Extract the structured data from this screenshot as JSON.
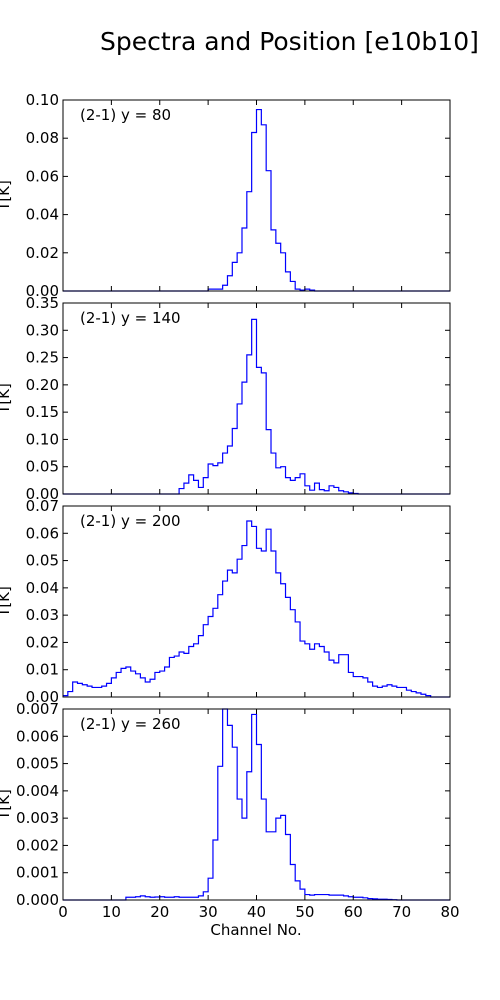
{
  "title": "Spectra and Position [e10b10]",
  "chart_data": {
    "type": "line",
    "title": "Spectra and Position [e10b10]",
    "xlabel": "Channel No.",
    "ylabel": "T[K]",
    "xlim": [
      0,
      80
    ],
    "xticks": [
      0,
      10,
      20,
      30,
      40,
      50,
      60,
      70,
      80
    ],
    "panels": [
      {
        "label": "(2-1) y = 80",
        "ylim": [
          0,
          0.1
        ],
        "yticks": [
          0.0,
          0.02,
          0.04,
          0.06,
          0.08,
          0.1
        ],
        "ytick_labels": [
          "0.00",
          "0.02",
          "0.04",
          "0.06",
          "0.08",
          "0.10"
        ],
        "x": [
          0,
          1,
          2,
          3,
          4,
          5,
          6,
          7,
          8,
          9,
          10,
          11,
          12,
          13,
          14,
          15,
          16,
          17,
          18,
          19,
          20,
          21,
          22,
          23,
          24,
          25,
          26,
          27,
          28,
          29,
          30,
          31,
          32,
          33,
          34,
          35,
          36,
          37,
          38,
          39,
          40,
          41,
          42,
          43,
          44,
          45,
          46,
          47,
          48,
          49,
          50,
          51,
          52,
          53,
          54,
          55,
          56,
          57,
          58,
          59,
          60,
          61,
          62,
          63,
          64,
          65,
          66,
          67,
          68,
          69,
          70,
          71,
          72,
          73,
          74,
          75,
          76,
          77,
          78,
          79
        ],
        "values": [
          0,
          0,
          0,
          0,
          0,
          0,
          0,
          0,
          0,
          0,
          0,
          0,
          0,
          0,
          0,
          0,
          0,
          0,
          0,
          0,
          0,
          0,
          0,
          0,
          0,
          0,
          0,
          0,
          0,
          0,
          0.001,
          0.001,
          0.001,
          0.003,
          0.008,
          0.015,
          0.02,
          0.033,
          0.052,
          0.083,
          0.095,
          0.087,
          0.063,
          0.032,
          0.025,
          0.02,
          0.01,
          0.005,
          0.001,
          0.0005,
          0.001,
          0.0005,
          0,
          0,
          0,
          0,
          0,
          0,
          0,
          0,
          0,
          0,
          0,
          0,
          0,
          0,
          0,
          0,
          0,
          0,
          0,
          0,
          0,
          0,
          0,
          0,
          0,
          0,
          0,
          0
        ]
      },
      {
        "label": "(2-1) y = 140",
        "ylim": [
          0,
          0.35
        ],
        "yticks": [
          0.0,
          0.05,
          0.1,
          0.15,
          0.2,
          0.25,
          0.3,
          0.35
        ],
        "ytick_labels": [
          "0.00",
          "0.05",
          "0.10",
          "0.15",
          "0.20",
          "0.25",
          "0.30",
          "0.35"
        ],
        "x": [
          0,
          1,
          2,
          3,
          4,
          5,
          6,
          7,
          8,
          9,
          10,
          11,
          12,
          13,
          14,
          15,
          16,
          17,
          18,
          19,
          20,
          21,
          22,
          23,
          24,
          25,
          26,
          27,
          28,
          29,
          30,
          31,
          32,
          33,
          34,
          35,
          36,
          37,
          38,
          39,
          40,
          41,
          42,
          43,
          44,
          45,
          46,
          47,
          48,
          49,
          50,
          51,
          52,
          53,
          54,
          55,
          56,
          57,
          58,
          59,
          60,
          61,
          62,
          63,
          64,
          65,
          66,
          67,
          68,
          69,
          70,
          71,
          72,
          73,
          74,
          75,
          76,
          77,
          78,
          79
        ],
        "values": [
          0,
          0,
          0,
          0,
          0,
          0,
          0,
          0,
          0,
          0,
          0,
          0,
          0,
          0,
          0,
          0,
          0,
          0,
          0,
          0,
          0,
          0,
          0,
          0,
          0.01,
          0.02,
          0.035,
          0.025,
          0.012,
          0.03,
          0.055,
          0.052,
          0.057,
          0.075,
          0.088,
          0.12,
          0.165,
          0.205,
          0.255,
          0.32,
          0.232,
          0.222,
          0.118,
          0.075,
          0.048,
          0.05,
          0.03,
          0.025,
          0.03,
          0.037,
          0.015,
          0.007,
          0.02,
          0.008,
          0.006,
          0.015,
          0.012,
          0.006,
          0.004,
          0.002,
          0.001,
          0,
          0,
          0,
          0,
          0,
          0,
          0,
          0,
          0,
          0,
          0,
          0,
          0,
          0,
          0,
          0,
          0,
          0,
          0
        ]
      },
      {
        "label": "(2-1) y = 200",
        "ylim": [
          0,
          0.07
        ],
        "yticks": [
          0.0,
          0.01,
          0.02,
          0.03,
          0.04,
          0.05,
          0.06,
          0.07
        ],
        "ytick_labels": [
          "0.00",
          "0.01",
          "0.02",
          "0.03",
          "0.04",
          "0.05",
          "0.06",
          "0.07"
        ],
        "x": [
          0,
          1,
          2,
          3,
          4,
          5,
          6,
          7,
          8,
          9,
          10,
          11,
          12,
          13,
          14,
          15,
          16,
          17,
          18,
          19,
          20,
          21,
          22,
          23,
          24,
          25,
          26,
          27,
          28,
          29,
          30,
          31,
          32,
          33,
          34,
          35,
          36,
          37,
          38,
          39,
          40,
          41,
          42,
          43,
          44,
          45,
          46,
          47,
          48,
          49,
          50,
          51,
          52,
          53,
          54,
          55,
          56,
          57,
          58,
          59,
          60,
          61,
          62,
          63,
          64,
          65,
          66,
          67,
          68,
          69,
          70,
          71,
          72,
          73,
          74,
          75,
          76,
          77,
          78,
          79
        ],
        "values": [
          0.0005,
          0.002,
          0.0055,
          0.005,
          0.0045,
          0.004,
          0.0035,
          0.0035,
          0.004,
          0.005,
          0.007,
          0.009,
          0.0105,
          0.011,
          0.0095,
          0.0085,
          0.007,
          0.0055,
          0.0065,
          0.009,
          0.0095,
          0.011,
          0.0145,
          0.015,
          0.0165,
          0.016,
          0.0185,
          0.0195,
          0.0225,
          0.0265,
          0.0295,
          0.0325,
          0.0375,
          0.0425,
          0.0465,
          0.0455,
          0.0505,
          0.0555,
          0.0645,
          0.0625,
          0.0545,
          0.0535,
          0.0615,
          0.0535,
          0.0455,
          0.0415,
          0.0365,
          0.032,
          0.0275,
          0.0205,
          0.0195,
          0.0175,
          0.0195,
          0.0185,
          0.0165,
          0.0135,
          0.0125,
          0.0155,
          0.0155,
          0.009,
          0.0075,
          0.0075,
          0.007,
          0.0055,
          0.004,
          0.0035,
          0.004,
          0.0045,
          0.004,
          0.0035,
          0.0035,
          0.0025,
          0.002,
          0.0015,
          0.001,
          0.0005,
          0,
          0,
          0,
          0
        ]
      },
      {
        "label": "(2-1) y = 260",
        "ylim": [
          0,
          0.007
        ],
        "yticks": [
          0.0,
          0.001,
          0.002,
          0.003,
          0.004,
          0.005,
          0.006,
          0.007
        ],
        "ytick_labels": [
          "0.000",
          "0.001",
          "0.002",
          "0.003",
          "0.004",
          "0.005",
          "0.006",
          "0.007"
        ],
        "x": [
          0,
          1,
          2,
          3,
          4,
          5,
          6,
          7,
          8,
          9,
          10,
          11,
          12,
          13,
          14,
          15,
          16,
          17,
          18,
          19,
          20,
          21,
          22,
          23,
          24,
          25,
          26,
          27,
          28,
          29,
          30,
          31,
          32,
          33,
          34,
          35,
          36,
          37,
          38,
          39,
          40,
          41,
          42,
          43,
          44,
          45,
          46,
          47,
          48,
          49,
          50,
          51,
          52,
          53,
          54,
          55,
          56,
          57,
          58,
          59,
          60,
          61,
          62,
          63,
          64,
          65,
          66,
          67,
          68,
          69,
          70,
          71,
          72,
          73,
          74,
          75,
          76,
          77,
          78,
          79
        ],
        "values": [
          0,
          0,
          0,
          0,
          0,
          0,
          0,
          0,
          0,
          0,
          0,
          0,
          0,
          0.0001,
          0.0001,
          0.00012,
          0.00015,
          0.00012,
          0.0001,
          0.00011,
          0.00012,
          0.0001,
          0.0001,
          0.00012,
          0.0001,
          0.0001,
          0.0001,
          0.0001,
          0.00015,
          0.0003,
          0.0008,
          0.0022,
          0.0049,
          0.007,
          0.0064,
          0.0056,
          0.0037,
          0.003,
          0.0047,
          0.0068,
          0.0057,
          0.0037,
          0.0025,
          0.0025,
          0.003,
          0.0031,
          0.0024,
          0.0013,
          0.0007,
          0.0004,
          0.0002,
          0.00018,
          0.0002,
          0.0002,
          0.0002,
          0.00018,
          0.00018,
          0.00018,
          0.00015,
          0.00012,
          0.0001,
          0.0001,
          8e-05,
          5e-05,
          4e-05,
          3e-05,
          3e-05,
          2e-05,
          1e-05,
          0,
          0,
          0,
          0,
          0,
          0,
          0,
          0,
          0,
          0,
          0
        ]
      }
    ]
  }
}
